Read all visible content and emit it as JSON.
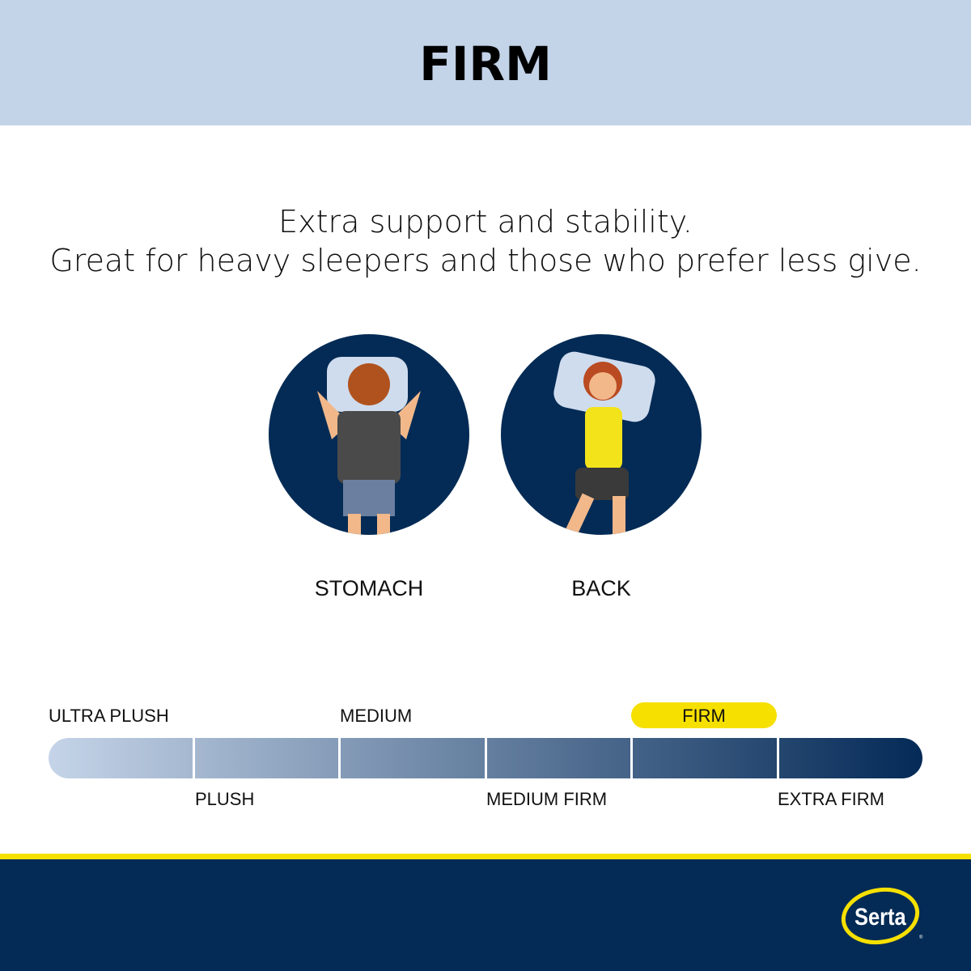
{
  "header": {
    "title": "FIRM"
  },
  "description": {
    "line1": "Extra support and stability.",
    "line2": "Great for heavy sleepers and those who prefer less give."
  },
  "positions": [
    {
      "label": "STOMACH",
      "icon": "stomach-sleeper-illustration"
    },
    {
      "label": "BACK",
      "icon": "back-sleeper-illustration"
    }
  ],
  "firmness_scale": {
    "levels": [
      "ULTRA PLUSH",
      "PLUSH",
      "MEDIUM",
      "MEDIUM FIRM",
      "FIRM",
      "EXTRA FIRM"
    ],
    "selected": "FIRM",
    "highlight_color": "#f6e000",
    "gradient": [
      "#c5d4e8",
      "#042a57"
    ]
  },
  "footer": {
    "brand": "Serta",
    "brand_color": "#032b55",
    "accent": "#f6e000"
  },
  "colors": {
    "header_bg": "#c3d3e8",
    "circle_bg": "#032b55"
  }
}
